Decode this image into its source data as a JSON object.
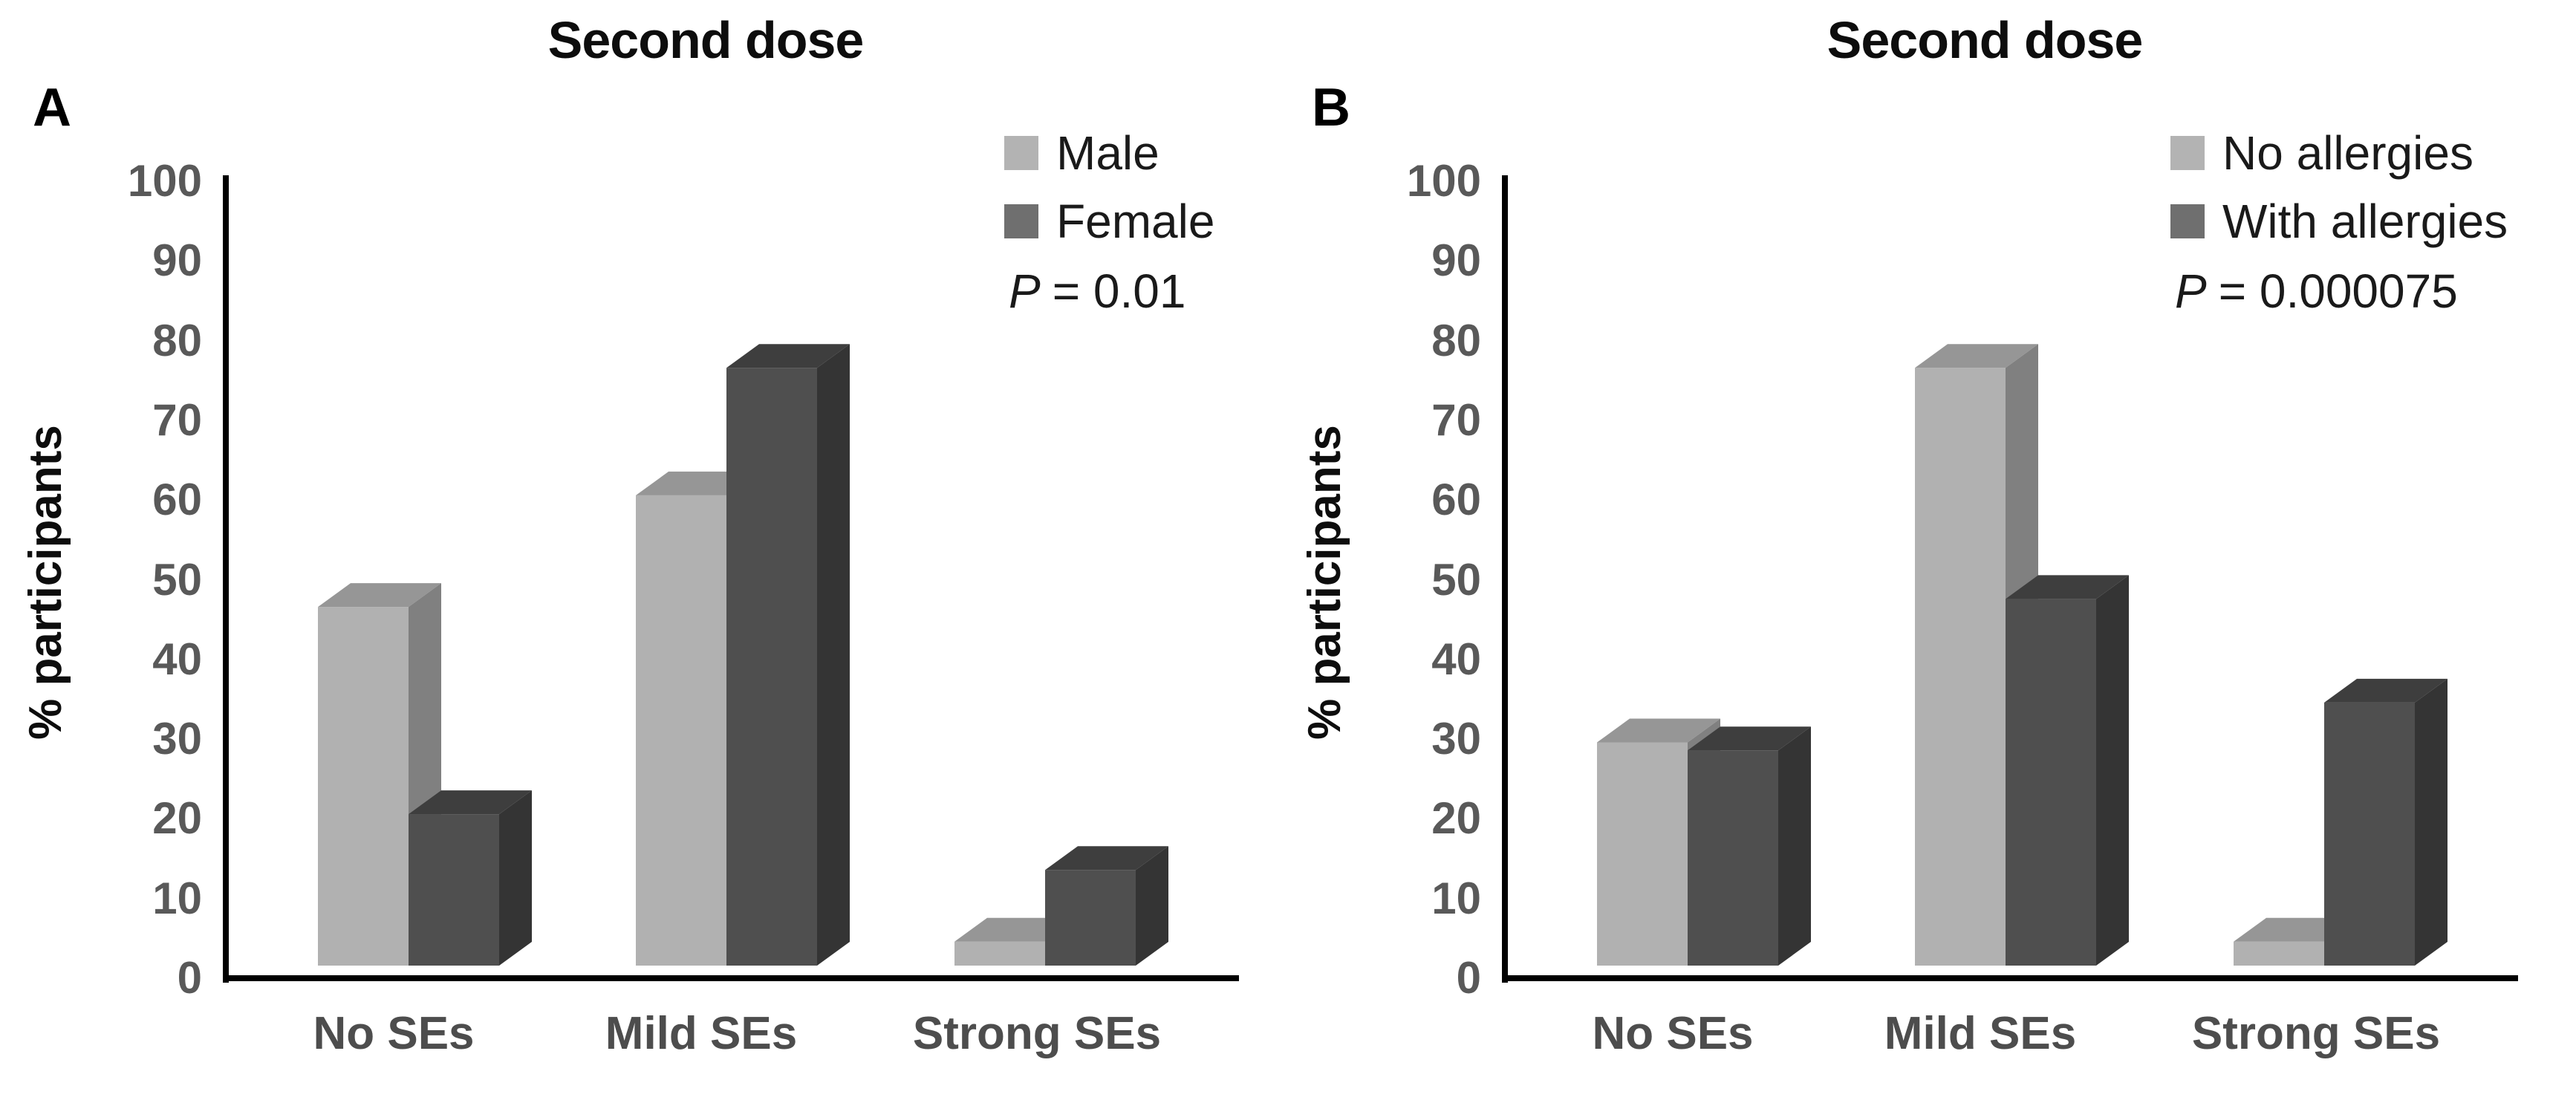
{
  "chart_data": [
    {
      "type": "bar",
      "style": "3d-grouped-column",
      "panel_label": "A",
      "title": "Second dose",
      "ylabel": "% participants",
      "ylim": [
        0,
        100
      ],
      "yticks": [
        0,
        10,
        20,
        30,
        40,
        50,
        60,
        70,
        80,
        90,
        100
      ],
      "categories": [
        "No SEs",
        "Mild SEs",
        "Strong SEs"
      ],
      "series": [
        {
          "name": "Male",
          "values": [
            45,
            59,
            3
          ]
        },
        {
          "name": "Female",
          "values": [
            19,
            75,
            12
          ]
        }
      ],
      "series_colors": [
        {
          "legend": "#b3b3b3",
          "front": "#b1b1b1",
          "top": "#969696",
          "side": "#808080"
        },
        {
          "legend": "#6f6f6f",
          "front": "#4f4f4f",
          "top": "#3e3e3e",
          "side": "#343434"
        }
      ],
      "annotation": {
        "p_label": "P",
        "p_rest": "= 0.01"
      },
      "legend_position": "top-right",
      "grid": false,
      "axis_color": "#000000",
      "tick_label_color": "#595959",
      "category_label_color": "#4d4d4d"
    },
    {
      "type": "bar",
      "style": "3d-grouped-column",
      "panel_label": "B",
      "title": "Second dose",
      "ylabel": "% participants",
      "ylim": [
        0,
        100
      ],
      "yticks": [
        0,
        10,
        20,
        30,
        40,
        50,
        60,
        70,
        80,
        90,
        100
      ],
      "categories": [
        "No SEs",
        "Mild SEs",
        "Strong SEs"
      ],
      "series": [
        {
          "name": "No allergies",
          "values": [
            28,
            75,
            3
          ]
        },
        {
          "name": "With allergies",
          "values": [
            27,
            46,
            33
          ]
        }
      ],
      "series_colors": [
        {
          "legend": "#b3b3b3",
          "front": "#b1b1b1",
          "top": "#969696",
          "side": "#808080"
        },
        {
          "legend": "#6f6f6f",
          "front": "#4f4f4f",
          "top": "#3e3e3e",
          "side": "#343434"
        }
      ],
      "annotation": {
        "p_label": "P",
        "p_rest": "= 0.000075"
      },
      "legend_position": "top-right",
      "grid": false,
      "axis_color": "#000000",
      "tick_label_color": "#595959",
      "category_label_color": "#4d4d4d"
    }
  ]
}
